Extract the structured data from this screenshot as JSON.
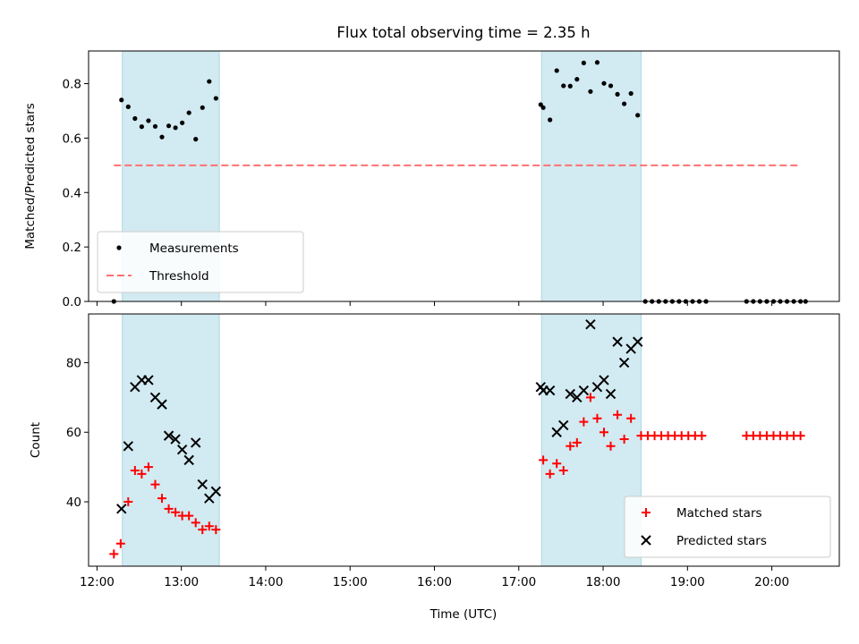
{
  "chart_data": {
    "type": "scatter",
    "title": "Flux total observing time = 2.35 h",
    "xlabel": "Time (UTC)",
    "x_unit": "hours (UTC)",
    "xlim": [
      11.9,
      20.8
    ],
    "x_ticks": [
      {
        "value": 12,
        "label": "12:00"
      },
      {
        "value": 13,
        "label": "13:00"
      },
      {
        "value": 14,
        "label": "14:00"
      },
      {
        "value": 15,
        "label": "15:00"
      },
      {
        "value": 16,
        "label": "16:00"
      },
      {
        "value": 17,
        "label": "17:00"
      },
      {
        "value": 18,
        "label": "18:00"
      },
      {
        "value": 19,
        "label": "19:00"
      },
      {
        "value": 20,
        "label": "20:00"
      }
    ],
    "highlight_spans": [
      [
        12.3,
        13.45
      ],
      [
        17.27,
        18.45
      ]
    ],
    "highlight_color": "#add8e6",
    "panels": [
      {
        "id": "ratio",
        "ylabel": "Matched/Predicted stars",
        "ylim": [
          0,
          0.92
        ],
        "y_ticks": [
          {
            "value": 0.0,
            "label": "0.0"
          },
          {
            "value": 0.2,
            "label": "0.2"
          },
          {
            "value": 0.4,
            "label": "0.4"
          },
          {
            "value": 0.6,
            "label": "0.6"
          },
          {
            "value": 0.8,
            "label": "0.8"
          }
        ],
        "legend_position": "lower-left",
        "series": [
          {
            "name": "Measurements",
            "marker": "dot",
            "color": "#000000",
            "points": [
              [
                12.2,
                0.0
              ],
              [
                12.29,
                0.74
              ],
              [
                12.37,
                0.715
              ],
              [
                12.45,
                0.672
              ],
              [
                12.53,
                0.642
              ],
              [
                12.61,
                0.664
              ],
              [
                12.69,
                0.643
              ],
              [
                12.77,
                0.604
              ],
              [
                12.85,
                0.645
              ],
              [
                12.93,
                0.638
              ],
              [
                13.01,
                0.656
              ],
              [
                13.09,
                0.693
              ],
              [
                13.17,
                0.596
              ],
              [
                13.25,
                0.712
              ],
              [
                13.33,
                0.808
              ],
              [
                13.41,
                0.746
              ],
              [
                17.26,
                0.723
              ],
              [
                17.29,
                0.712
              ],
              [
                17.37,
                0.667
              ],
              [
                17.45,
                0.848
              ],
              [
                17.53,
                0.792
              ],
              [
                17.61,
                0.791
              ],
              [
                17.69,
                0.816
              ],
              [
                17.77,
                0.876
              ],
              [
                17.85,
                0.771
              ],
              [
                17.93,
                0.878
              ],
              [
                18.01,
                0.801
              ],
              [
                18.09,
                0.792
              ],
              [
                18.17,
                0.761
              ],
              [
                18.25,
                0.726
              ],
              [
                18.33,
                0.764
              ],
              [
                18.41,
                0.684
              ],
              [
                18.5,
                0.0
              ],
              [
                18.58,
                0.0
              ],
              [
                18.66,
                0.0
              ],
              [
                18.74,
                0.0
              ],
              [
                18.82,
                0.0
              ],
              [
                18.9,
                0.0
              ],
              [
                18.98,
                0.0
              ],
              [
                19.06,
                0.0
              ],
              [
                19.14,
                0.0
              ],
              [
                19.22,
                0.0
              ],
              [
                19.7,
                0.0
              ],
              [
                19.78,
                0.0
              ],
              [
                19.86,
                0.0
              ],
              [
                19.94,
                0.0
              ],
              [
                20.02,
                0.0
              ],
              [
                20.1,
                0.0
              ],
              [
                20.18,
                0.0
              ],
              [
                20.26,
                0.0
              ],
              [
                20.34,
                0.0
              ],
              [
                20.4,
                0.0
              ]
            ]
          },
          {
            "name": "Threshold",
            "marker": "dashed-line",
            "color": "#ff7070",
            "points": [
              [
                12.2,
                0.5
              ],
              [
                20.32,
                0.5
              ]
            ]
          }
        ]
      },
      {
        "id": "count",
        "ylabel": "Count",
        "ylim": [
          21.5,
          94
        ],
        "y_ticks": [
          {
            "value": 40,
            "label": "40"
          },
          {
            "value": 60,
            "label": "60"
          },
          {
            "value": 80,
            "label": "80"
          }
        ],
        "legend_position": "lower-right",
        "series": [
          {
            "name": "Matched stars",
            "marker": "plus",
            "color": "#ff0000",
            "points": [
              [
                12.2,
                25
              ],
              [
                12.28,
                28
              ],
              [
                12.37,
                40
              ],
              [
                12.45,
                49
              ],
              [
                12.53,
                48
              ],
              [
                12.61,
                50
              ],
              [
                12.69,
                45
              ],
              [
                12.77,
                41
              ],
              [
                12.85,
                38
              ],
              [
                12.93,
                37
              ],
              [
                13.01,
                36
              ],
              [
                13.09,
                36
              ],
              [
                13.17,
                34
              ],
              [
                13.25,
                32
              ],
              [
                13.33,
                33
              ],
              [
                13.41,
                32
              ],
              [
                17.29,
                52
              ],
              [
                17.37,
                48
              ],
              [
                17.45,
                51
              ],
              [
                17.53,
                49
              ],
              [
                17.61,
                56
              ],
              [
                17.69,
                57
              ],
              [
                17.77,
                63
              ],
              [
                17.85,
                70
              ],
              [
                17.93,
                64
              ],
              [
                18.01,
                60
              ],
              [
                18.09,
                56
              ],
              [
                18.17,
                65
              ],
              [
                18.25,
                58
              ],
              [
                18.33,
                64
              ],
              [
                18.45,
                59
              ],
              [
                18.53,
                59
              ],
              [
                18.61,
                59
              ],
              [
                18.69,
                59
              ],
              [
                18.77,
                59
              ],
              [
                18.85,
                59
              ],
              [
                18.93,
                59
              ],
              [
                19.01,
                59
              ],
              [
                19.09,
                59
              ],
              [
                19.17,
                59
              ],
              [
                19.7,
                59
              ],
              [
                19.78,
                59
              ],
              [
                19.86,
                59
              ],
              [
                19.94,
                59
              ],
              [
                20.02,
                59
              ],
              [
                20.1,
                59
              ],
              [
                20.18,
                59
              ],
              [
                20.26,
                59
              ],
              [
                20.34,
                59
              ]
            ]
          },
          {
            "name": "Predicted stars",
            "marker": "x",
            "color": "#000000",
            "points": [
              [
                12.29,
                38
              ],
              [
                12.37,
                56
              ],
              [
                12.45,
                73
              ],
              [
                12.53,
                75
              ],
              [
                12.61,
                75
              ],
              [
                12.69,
                70
              ],
              [
                12.77,
                68
              ],
              [
                12.85,
                59
              ],
              [
                12.93,
                58
              ],
              [
                13.01,
                55
              ],
              [
                13.09,
                52
              ],
              [
                13.17,
                57
              ],
              [
                13.25,
                45
              ],
              [
                13.33,
                41
              ],
              [
                13.41,
                43
              ],
              [
                17.26,
                73
              ],
              [
                17.29,
                72
              ],
              [
                17.37,
                72
              ],
              [
                17.45,
                60
              ],
              [
                17.53,
                62
              ],
              [
                17.61,
                71
              ],
              [
                17.69,
                70
              ],
              [
                17.77,
                72
              ],
              [
                17.85,
                91
              ],
              [
                17.93,
                73
              ],
              [
                18.01,
                75
              ],
              [
                18.09,
                71
              ],
              [
                18.17,
                86
              ],
              [
                18.25,
                80
              ],
              [
                18.33,
                84
              ],
              [
                18.41,
                86
              ]
            ]
          }
        ]
      }
    ]
  }
}
